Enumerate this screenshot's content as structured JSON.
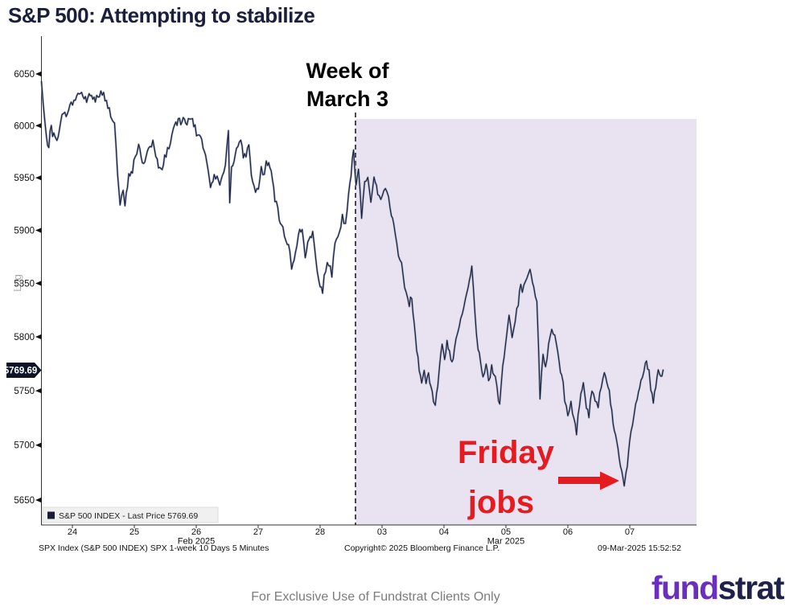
{
  "page": {
    "title": "S&P 500: Attempting to stabilize",
    "footer": "For Exclusive Use of Fundstrat Clients Only",
    "logo": {
      "part1": "fund",
      "part2": "strat"
    }
  },
  "annotations": {
    "week_line1": "Week of",
    "week_line2": "March 3",
    "jobs_line1": "Friday",
    "jobs_line2": "jobs"
  },
  "colors": {
    "accent_red": "#e51b20",
    "line_navy": "#181d3a",
    "line_shadow": "#9aa3b8",
    "logo_purple": "#6b2fc0",
    "logo_navy": "#1f2148",
    "shade_lavender": "#e9e2f1",
    "axis": "#333333",
    "badge_bg": "#0d1428",
    "legend_bg": "#f0f0f0"
  },
  "chart_data": {
    "type": "line",
    "title": "S&P 500: Attempting to stabilize",
    "instrument": "S&P 500 INDEX (SPX)",
    "legend_label": "S&P 500 INDEX - Last Price  5769.69",
    "last_price": 5769.69,
    "y_scale_label": "Log",
    "y_ticks": [
      6050,
      6000,
      5950,
      5900,
      5850,
      5800,
      5750,
      5700,
      5650
    ],
    "y_range": [
      5650,
      6050
    ],
    "x_day_labels": [
      "24",
      "25",
      "26",
      "27",
      "28",
      "03",
      "04",
      "05",
      "06",
      "07"
    ],
    "x_month_labels": [
      {
        "label": "Feb 2025",
        "day_index": 2
      },
      {
        "label": "Mar 2025",
        "day_index": 7
      }
    ],
    "footnote_left": "SPX Index (S&P 500 INDEX) SPX 1-week 10 Days 5 Minutes",
    "footnote_center": "Copyright© 2025 Bloomberg Finance L.P.",
    "footnote_right": "09-Mar-2025 15:52:52",
    "shaded_region": {
      "from_day_label": "03",
      "note": "Week of March 3 highlighted"
    },
    "x_unit": "trading-day index, 0 = Feb 24 2025 open, fraction = intraday time",
    "series": [
      {
        "name": "S&P 500 INDEX - Last Price",
        "points": [
          [
            0.0,
            6043
          ],
          [
            0.03,
            6020
          ],
          [
            0.08,
            5987
          ],
          [
            0.12,
            5981
          ],
          [
            0.16,
            6002
          ],
          [
            0.2,
            5990
          ],
          [
            0.25,
            5984
          ],
          [
            0.31,
            6006
          ],
          [
            0.4,
            6012
          ],
          [
            0.48,
            6020
          ],
          [
            0.57,
            6028
          ],
          [
            0.63,
            6033
          ],
          [
            0.71,
            6024
          ],
          [
            0.79,
            6029
          ],
          [
            0.87,
            6026
          ],
          [
            0.96,
            6031
          ],
          [
            1.05,
            6022
          ],
          [
            1.12,
            6012
          ],
          [
            1.18,
            6002
          ],
          [
            1.23,
            5955
          ],
          [
            1.27,
            5922
          ],
          [
            1.32,
            5938
          ],
          [
            1.35,
            5924
          ],
          [
            1.41,
            5951
          ],
          [
            1.47,
            5960
          ],
          [
            1.54,
            5975
          ],
          [
            1.57,
            5981
          ],
          [
            1.63,
            5962
          ],
          [
            1.67,
            5968
          ],
          [
            1.73,
            5978
          ],
          [
            1.8,
            5985
          ],
          [
            1.87,
            5962
          ],
          [
            1.93,
            5956
          ],
          [
            1.99,
            5970
          ],
          [
            2.06,
            5980
          ],
          [
            2.13,
            5996
          ],
          [
            2.21,
            6004
          ],
          [
            2.29,
            6011
          ],
          [
            2.35,
            6001
          ],
          [
            2.42,
            6008
          ],
          [
            2.48,
            5999
          ],
          [
            2.55,
            5990
          ],
          [
            2.61,
            5981
          ],
          [
            2.67,
            5964
          ],
          [
            2.73,
            5938
          ],
          [
            2.79,
            5950
          ],
          [
            2.86,
            5942
          ],
          [
            2.92,
            5955
          ],
          [
            2.97,
            5960
          ],
          [
            3.02,
            5993
          ],
          [
            3.04,
            5926
          ],
          [
            3.07,
            5960
          ],
          [
            3.15,
            5978
          ],
          [
            3.22,
            5983
          ],
          [
            3.28,
            5970
          ],
          [
            3.35,
            5980
          ],
          [
            3.41,
            5945
          ],
          [
            3.48,
            5934
          ],
          [
            3.55,
            5958
          ],
          [
            3.6,
            5952
          ],
          [
            3.63,
            5966
          ],
          [
            3.71,
            5956
          ],
          [
            3.77,
            5930
          ],
          [
            3.84,
            5912
          ],
          [
            3.9,
            5900
          ],
          [
            3.95,
            5893
          ],
          [
            4.01,
            5880
          ],
          [
            4.04,
            5863
          ],
          [
            4.1,
            5880
          ],
          [
            4.15,
            5896
          ],
          [
            4.21,
            5903
          ],
          [
            4.26,
            5877
          ],
          [
            4.32,
            5890
          ],
          [
            4.38,
            5898
          ],
          [
            4.43,
            5872
          ],
          [
            4.48,
            5855
          ],
          [
            4.54,
            5841
          ],
          [
            4.59,
            5862
          ],
          [
            4.64,
            5870
          ],
          [
            4.69,
            5858
          ],
          [
            4.74,
            5886
          ],
          [
            4.81,
            5896
          ],
          [
            4.86,
            5912
          ],
          [
            4.91,
            5906
          ],
          [
            4.96,
            5932
          ],
          [
            5.0,
            5952
          ],
          [
            5.04,
            5978
          ],
          [
            5.08,
            5940
          ],
          [
            5.12,
            5960
          ],
          [
            5.17,
            5915
          ],
          [
            5.22,
            5945
          ],
          [
            5.27,
            5952
          ],
          [
            5.32,
            5932
          ],
          [
            5.37,
            5950
          ],
          [
            5.43,
            5935
          ],
          [
            5.48,
            5928
          ],
          [
            5.53,
            5945
          ],
          [
            5.58,
            5938
          ],
          [
            5.63,
            5920
          ],
          [
            5.69,
            5905
          ],
          [
            5.74,
            5888
          ],
          [
            5.79,
            5870
          ],
          [
            5.84,
            5856
          ],
          [
            5.89,
            5842
          ],
          [
            5.94,
            5830
          ],
          [
            5.98,
            5838
          ],
          [
            6.02,
            5812
          ],
          [
            6.06,
            5790
          ],
          [
            6.1,
            5772
          ],
          [
            6.14,
            5758
          ],
          [
            6.18,
            5770
          ],
          [
            6.21,
            5755
          ],
          [
            6.25,
            5768
          ],
          [
            6.29,
            5752
          ],
          [
            6.33,
            5744
          ],
          [
            6.36,
            5738
          ],
          [
            6.4,
            5756
          ],
          [
            6.43,
            5775
          ],
          [
            6.47,
            5790
          ],
          [
            6.51,
            5782
          ],
          [
            6.55,
            5795
          ],
          [
            6.59,
            5785
          ],
          [
            6.63,
            5776
          ],
          [
            6.67,
            5790
          ],
          [
            6.72,
            5806
          ],
          [
            6.77,
            5818
          ],
          [
            6.82,
            5830
          ],
          [
            6.87,
            5842
          ],
          [
            6.93,
            5856
          ],
          [
            6.95,
            5866
          ],
          [
            7.0,
            5820
          ],
          [
            7.05,
            5794
          ],
          [
            7.09,
            5775
          ],
          [
            7.13,
            5762
          ],
          [
            7.18,
            5780
          ],
          [
            7.22,
            5758
          ],
          [
            7.27,
            5770
          ],
          [
            7.33,
            5762
          ],
          [
            7.38,
            5748
          ],
          [
            7.4,
            5740
          ],
          [
            7.45,
            5772
          ],
          [
            7.51,
            5800
          ],
          [
            7.55,
            5820
          ],
          [
            7.6,
            5800
          ],
          [
            7.65,
            5812
          ],
          [
            7.7,
            5830
          ],
          [
            7.74,
            5850
          ],
          [
            7.79,
            5846
          ],
          [
            7.84,
            5852
          ],
          [
            7.89,
            5860
          ],
          [
            7.95,
            5845
          ],
          [
            8.0,
            5832
          ],
          [
            8.03,
            5782
          ],
          [
            8.05,
            5745
          ],
          [
            8.1,
            5786
          ],
          [
            8.14,
            5770
          ],
          [
            8.19,
            5795
          ],
          [
            8.24,
            5810
          ],
          [
            8.29,
            5800
          ],
          [
            8.34,
            5785
          ],
          [
            8.4,
            5768
          ],
          [
            8.45,
            5742
          ],
          [
            8.5,
            5726
          ],
          [
            8.55,
            5740
          ],
          [
            8.6,
            5722
          ],
          [
            8.64,
            5712
          ],
          [
            8.69,
            5740
          ],
          [
            8.75,
            5756
          ],
          [
            8.78,
            5742
          ],
          [
            8.84,
            5726
          ],
          [
            8.89,
            5752
          ],
          [
            8.94,
            5742
          ],
          [
            8.99,
            5738
          ],
          [
            9.04,
            5756
          ],
          [
            9.09,
            5770
          ],
          [
            9.13,
            5760
          ],
          [
            9.17,
            5748
          ],
          [
            9.21,
            5730
          ],
          [
            9.25,
            5716
          ],
          [
            9.29,
            5702
          ],
          [
            9.33,
            5690
          ],
          [
            9.37,
            5676
          ],
          [
            9.41,
            5666
          ],
          [
            9.44,
            5674
          ],
          [
            9.48,
            5692
          ],
          [
            9.52,
            5710
          ],
          [
            9.57,
            5728
          ],
          [
            9.62,
            5744
          ],
          [
            9.68,
            5758
          ],
          [
            9.73,
            5770
          ],
          [
            9.77,
            5778
          ],
          [
            9.81,
            5766
          ],
          [
            9.84,
            5752
          ],
          [
            9.88,
            5740
          ],
          [
            9.92,
            5756
          ],
          [
            9.96,
            5770
          ],
          [
            10.0,
            5764
          ],
          [
            10.04,
            5769.69
          ]
        ]
      }
    ]
  }
}
